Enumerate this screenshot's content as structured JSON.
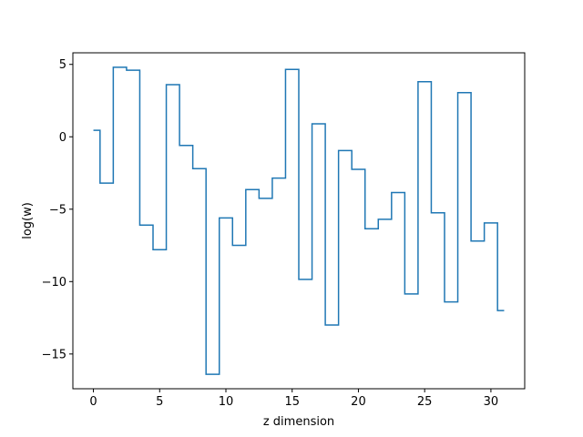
{
  "chart_data": {
    "type": "line",
    "drawstyle": "steps-mid",
    "title": "",
    "xlabel": "z dimension",
    "ylabel": "log(w)",
    "xlim": [
      -1.55,
      32.55
    ],
    "ylim": [
      -17.4,
      5.8
    ],
    "xticks": [
      0,
      5,
      10,
      15,
      20,
      25,
      30
    ],
    "yticks": [
      5,
      0,
      -5,
      -10,
      -15
    ],
    "ytick_labels": [
      "5",
      "0",
      "−5",
      "−10",
      "−15"
    ],
    "grid": false,
    "line_color": "#1f77b4",
    "series": [
      {
        "x": [
          0,
          1,
          2,
          3,
          4,
          5,
          6,
          7,
          8,
          9,
          10,
          11,
          12,
          13,
          14,
          15,
          16,
          17,
          18,
          19,
          20,
          21,
          22,
          23,
          24,
          25,
          26,
          27,
          28,
          29,
          30,
          31
        ],
        "y": [
          0.45,
          -3.2,
          4.8,
          4.6,
          -6.1,
          -7.8,
          3.6,
          -0.6,
          -2.2,
          -16.4,
          -5.6,
          -7.5,
          -3.65,
          -4.25,
          -2.85,
          4.65,
          -9.85,
          0.9,
          -13.0,
          -0.95,
          -2.25,
          -6.35,
          -5.7,
          -3.85,
          -10.85,
          3.8,
          -5.25,
          -11.4,
          3.05,
          -7.2,
          -5.95,
          -12.0
        ]
      }
    ]
  }
}
